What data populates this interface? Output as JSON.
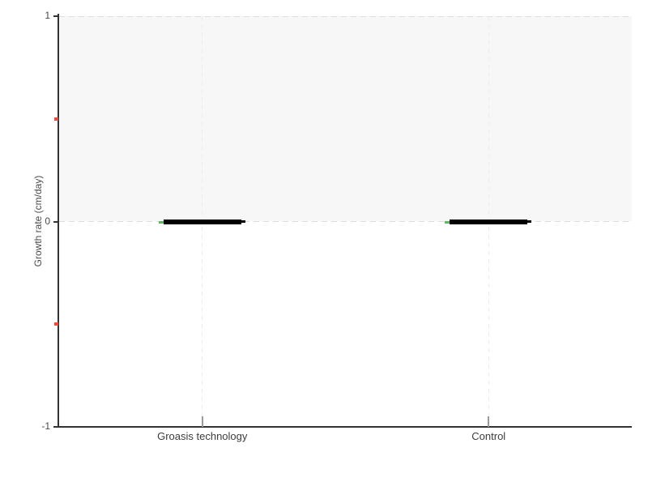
{
  "chart_data": {
    "type": "bar",
    "title": "",
    "xlabel": "",
    "ylabel": "Growth rate (cm/day)",
    "categories": [
      "Groasis technology",
      "Control"
    ],
    "values": [
      0,
      0
    ],
    "ylim": [
      -1,
      1
    ],
    "yticks": [
      1,
      0,
      -1
    ],
    "minor_yticks": [
      0.5,
      -0.5
    ],
    "legend_position": "none",
    "grid": {
      "vertical_dashed_at_each_category": true,
      "horizontal_dashed_at": [
        1,
        0
      ]
    },
    "shaded_band": {
      "from": 0,
      "to": 1
    },
    "mark_style": "thick horizontal black line at value with small green left end-tick and black right end-tick"
  },
  "colors": {
    "band": "#f7f7f7",
    "h_grid": "#dedede",
    "v_grid": "#ececec",
    "axis": "#333333",
    "tick_label": "#4a4a4a",
    "x_tick": "#9a9a9a",
    "bar": "#000000",
    "left_end_tick": "#62b862",
    "right_end_tick": "#000000",
    "minor_tick": "#ef4a3e"
  }
}
